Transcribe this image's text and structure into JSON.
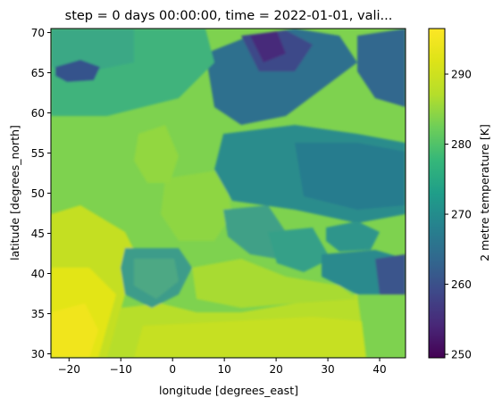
{
  "chart_data": {
    "type": "heatmap",
    "title": "step = 0 days 00:00:00, time = 2022-01-01, vali...",
    "xlabel": "longitude [degrees_east]",
    "ylabel": "latitude [degrees_north]",
    "colorbar_label": "2 metre temperature [K]",
    "colormap": "viridis",
    "xlim": [
      -23.5,
      45
    ],
    "ylim": [
      29.5,
      70.5
    ],
    "clim": [
      249.5,
      296.5
    ],
    "x_ticks": [
      -20,
      -10,
      0,
      10,
      20,
      30,
      40
    ],
    "x_tick_labels": [
      "−20",
      "−10",
      "0",
      "10",
      "20",
      "30",
      "40"
    ],
    "y_ticks": [
      30,
      35,
      40,
      45,
      50,
      55,
      60,
      65,
      70
    ],
    "y_tick_labels": [
      "30",
      "35",
      "40",
      "45",
      "50",
      "55",
      "60",
      "65",
      "70"
    ],
    "colorbar_ticks": [
      250,
      260,
      270,
      280,
      290
    ],
    "colorbar_tick_labels": [
      "250",
      "260",
      "270",
      "280",
      "290"
    ],
    "grid": false,
    "field_description": "Gridded 2 m temperature over Europe; warmest (~294 K) over the Atlantic and North Africa in the south-west, intermediate (~280–285 K) over western Europe and the Mediterranean, cold (~265–270 K) over eastern Europe and Scandinavia, coldest (~250–255 K) over northern Scandinavia and Iceland."
  }
}
